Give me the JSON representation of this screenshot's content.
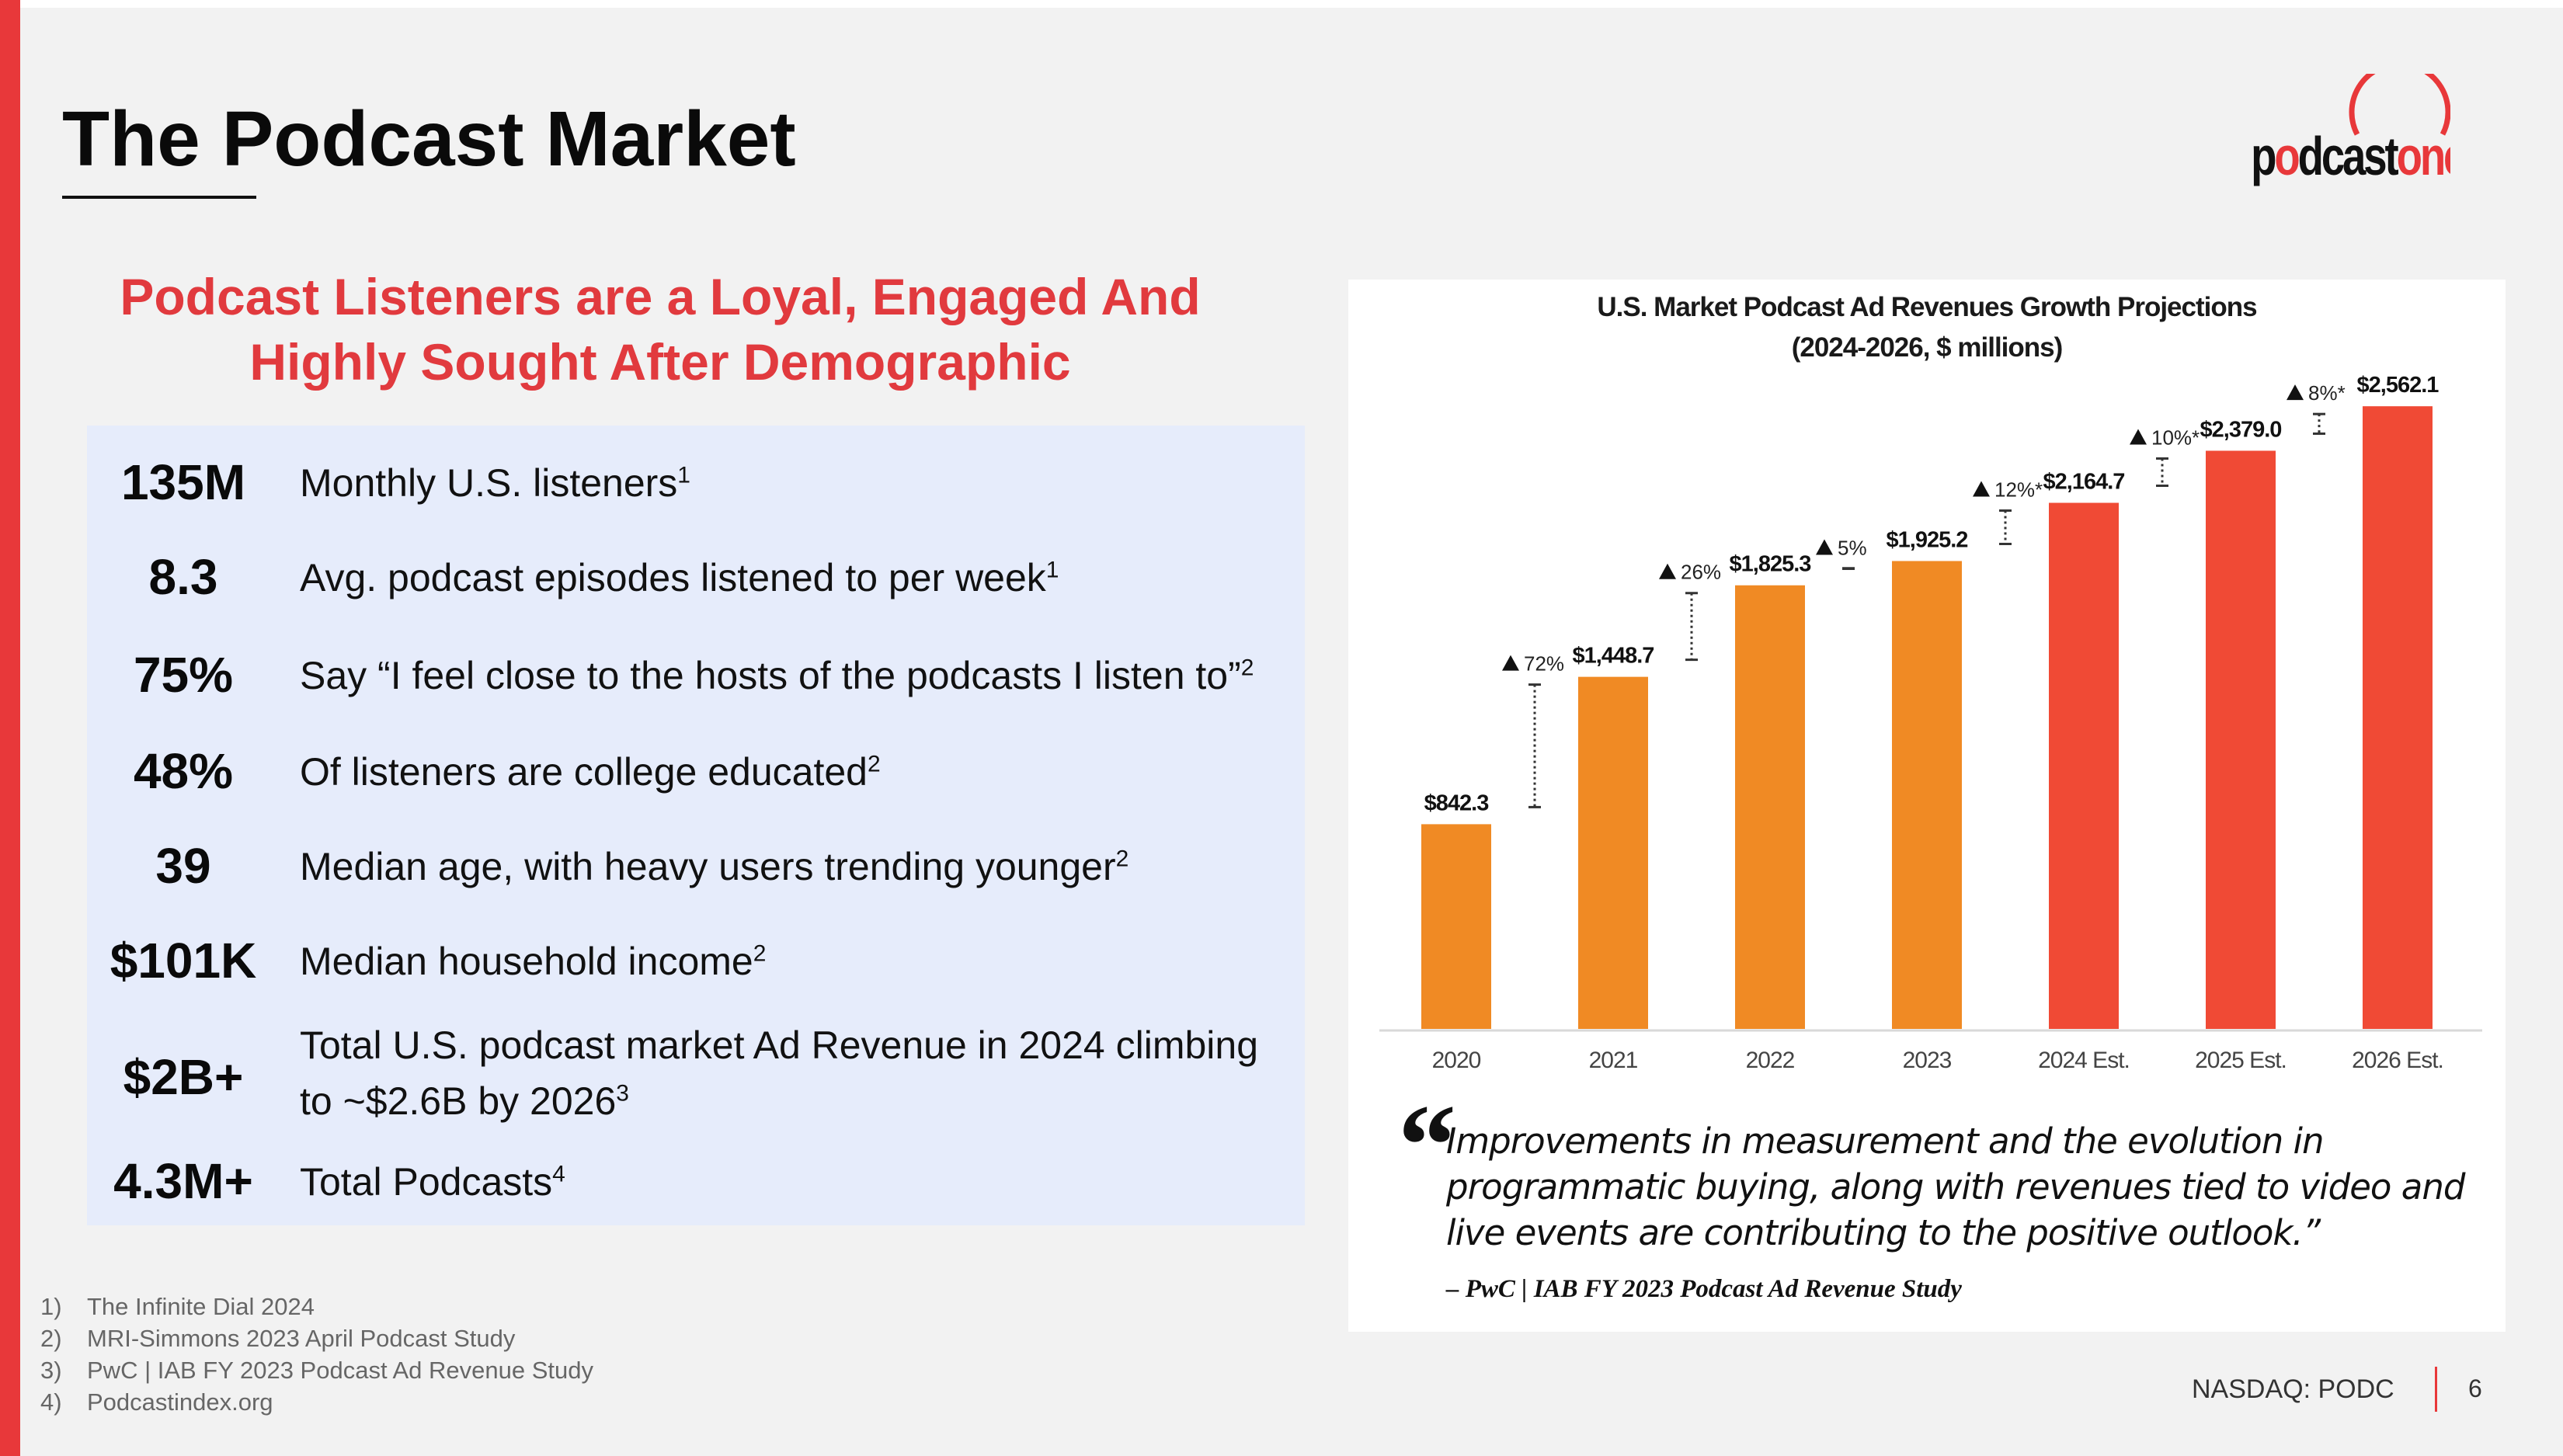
{
  "slide": {
    "title": "The Podcast Market",
    "logo_text_a": "p",
    "logo_text_b": "dcast",
    "logo_text_c": "one",
    "subtitle_line1": "Podcast Listeners are a Loyal, Engaged And",
    "subtitle_line2": "Highly Sought After Demographic",
    "footer_ticker": "NASDAQ: PODC",
    "page_number": "6"
  },
  "stats": [
    {
      "value": "135M",
      "desc": "Monthly U.S. listeners",
      "sup": "1"
    },
    {
      "value": "8.3",
      "desc": "Avg. podcast episodes listened to per week",
      "sup": "1"
    },
    {
      "value": "75%",
      "desc": "Say “I feel close to the hosts of the podcasts I listen to”",
      "sup": "2"
    },
    {
      "value": "48%",
      "desc": "Of listeners are college educated",
      "sup": "2"
    },
    {
      "value": "39",
      "desc": "Median age, with heavy users trending younger",
      "sup": "2"
    },
    {
      "value": "$101K",
      "desc": "Median household income",
      "sup": "2"
    },
    {
      "value": "$2B+",
      "desc_line1": "Total U.S. podcast market Ad Revenue in 2024 climbing",
      "desc_line2": "to ~$2.6B by 2026",
      "sup": "3"
    },
    {
      "value": "4.3M+",
      "desc": "Total Podcasts",
      "sup": "4"
    }
  ],
  "footnotes": [
    {
      "num": "1)",
      "text": "The Infinite Dial 2024"
    },
    {
      "num": "2)",
      "text": "MRI-Simmons 2023 April Podcast Study"
    },
    {
      "num": "3)",
      "text": "PwC | IAB FY 2023 Podcast Ad Revenue Study"
    },
    {
      "num": "4)",
      "text": "Podcastindex.org"
    }
  ],
  "chart_data": {
    "type": "bar",
    "title": "U.S. Market Podcast Ad Revenues Growth Projections",
    "subtitle": "(2024-2026, $ millions)",
    "categories": [
      "2020",
      "2021",
      "2022",
      "2023",
      "2024 Est.",
      "2025 Est.",
      "2026 Est."
    ],
    "values": [
      842.3,
      1448.7,
      1825.3,
      1925.2,
      2164.7,
      2379.0,
      2562.1
    ],
    "value_labels": [
      "$842.3",
      "$1,448.7",
      "$1,825.3",
      "$1,925.2",
      "$2,164.7",
      "$2,379.0",
      "$2,562.1"
    ],
    "growth_labels": [
      "72%",
      "26%",
      "5%",
      "12%*",
      "10%*",
      "8%*"
    ],
    "bar_colors": [
      "#f08a24",
      "#f08a24",
      "#f08a24",
      "#f08a24",
      "#f04a35",
      "#f04a35",
      "#f04a35"
    ],
    "ylim": [
      0,
      2700
    ],
    "xlabel": "",
    "ylabel": "",
    "grid": false
  },
  "quote": {
    "mark": "“",
    "text": "Improvements in measurement and the evolution in programmatic buying, along with revenues tied to video and live events are contributing to the positive outlook.”",
    "source": "– PwC | IAB FY 2023 Podcast Ad Revenue Study"
  },
  "colors": {
    "accent": "#e8383a",
    "subtitle_red": "#e13a3e",
    "panel_blue": "#e6ecfb",
    "bar_orange": "#f08a24",
    "bar_red": "#f04a35"
  }
}
